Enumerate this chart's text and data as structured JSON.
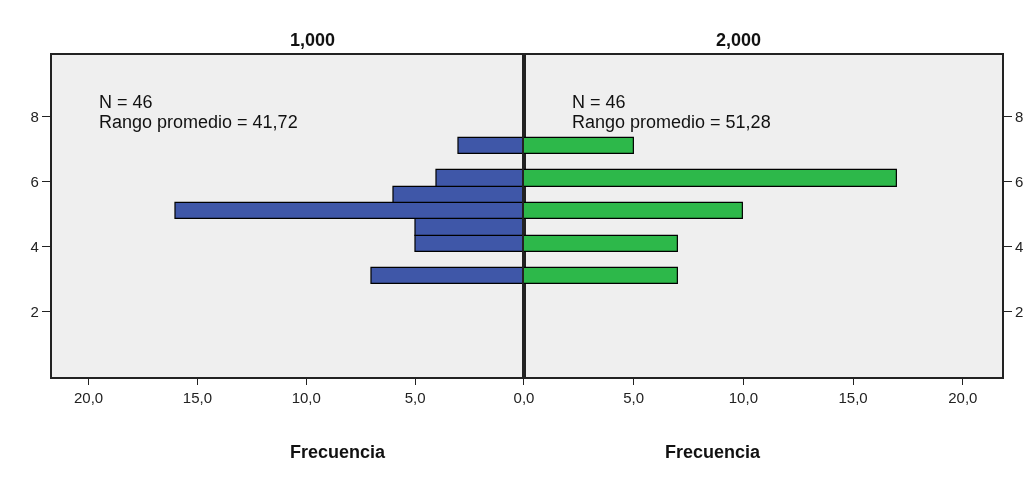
{
  "chart_data": [
    {
      "type": "histogram",
      "orientation": "horizontal",
      "title": "1,000",
      "xlabel": "Frecuencia",
      "color": "#3f57a8",
      "bins": [
        2.85,
        3.35,
        3.85,
        4.35,
        4.85,
        5.35,
        5.85,
        6.35,
        6.85,
        7.35
      ],
      "values": [
        7,
        0,
        5,
        5,
        16,
        6,
        4,
        0,
        3
      ],
      "xlim": [
        21.7,
        0
      ],
      "xticks": [
        {
          "value": 20,
          "label": "20,0"
        },
        {
          "value": 15,
          "label": "15,0"
        },
        {
          "value": 10,
          "label": "10,0"
        },
        {
          "value": 5,
          "label": "5,0"
        }
      ],
      "ylim": [
        0,
        9.9
      ],
      "yticks": [
        2,
        4,
        6,
        8
      ],
      "annotations": [
        "N = 46",
        "Rango promedio = 41,72"
      ]
    },
    {
      "type": "histogram",
      "orientation": "horizontal",
      "title": "2,000",
      "xlabel": "Frecuencia",
      "color": "#2db84a",
      "bins": [
        2.85,
        3.35,
        3.85,
        4.35,
        4.85,
        5.35,
        5.85,
        6.35,
        6.85,
        7.35
      ],
      "values": [
        7,
        0,
        7,
        0,
        10,
        0,
        17,
        0,
        5
      ],
      "xlim": [
        0,
        21.8
      ],
      "xticks": [
        {
          "value": 0,
          "label": "0,0"
        },
        {
          "value": 5,
          "label": "5,0"
        },
        {
          "value": 10,
          "label": "10,0"
        },
        {
          "value": 15,
          "label": "15,0"
        },
        {
          "value": 20,
          "label": "20,0"
        }
      ],
      "ylim": [
        0,
        9.9
      ],
      "yticks": [
        2,
        4,
        6,
        8
      ],
      "annotations": [
        "N = 46",
        "Rango promedio = 51,28"
      ]
    }
  ]
}
